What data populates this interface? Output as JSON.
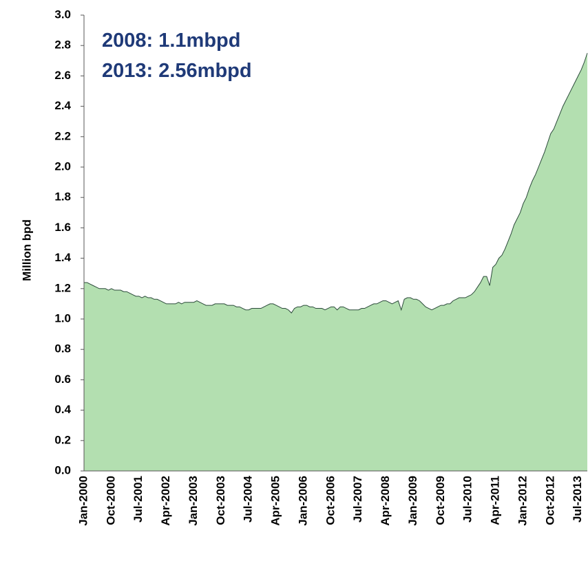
{
  "chart_data": {
    "type": "area",
    "annotations": [
      "2008: 1.1mbpd",
      "2013: 2.56mbpd"
    ],
    "y_label": "Million bpd",
    "color": "#b3dfb0",
    "line_color": "#2b4a3a",
    "categories": [
      "Jan-2000",
      null,
      null,
      null,
      null,
      null,
      null,
      null,
      null,
      "Oct-2000",
      null,
      null,
      null,
      null,
      null,
      null,
      null,
      null,
      "Jul-2001",
      null,
      null,
      null,
      null,
      null,
      null,
      null,
      null,
      "Apr-2002",
      null,
      null,
      null,
      null,
      null,
      null,
      null,
      null,
      "Jan-2003",
      null,
      null,
      null,
      null,
      null,
      null,
      null,
      null,
      "Oct-2003",
      null,
      null,
      null,
      null,
      null,
      null,
      null,
      null,
      "Jul-2004",
      null,
      null,
      null,
      null,
      null,
      null,
      null,
      null,
      "Apr-2005",
      null,
      null,
      null,
      null,
      null,
      null,
      null,
      null,
      "Jan-2006",
      null,
      null,
      null,
      null,
      null,
      null,
      null,
      null,
      "Oct-2006",
      null,
      null,
      null,
      null,
      null,
      null,
      null,
      null,
      "Jul-2007",
      null,
      null,
      null,
      null,
      null,
      null,
      null,
      null,
      "Apr-2008",
      null,
      null,
      null,
      null,
      null,
      null,
      null,
      null,
      "Jan-2009",
      null,
      null,
      null,
      null,
      null,
      null,
      null,
      null,
      "Oct-2009",
      null,
      null,
      null,
      null,
      null,
      null,
      null,
      null,
      "Jul-2010",
      null,
      null,
      null,
      null,
      null,
      null,
      null,
      null,
      "Apr-2011",
      null,
      null,
      null,
      null,
      null,
      null,
      null,
      null,
      "Jan-2012",
      null,
      null,
      null,
      null,
      null,
      null,
      null,
      null,
      "Oct-2012",
      null,
      null,
      null,
      null,
      null,
      null,
      null,
      null,
      "Jul-2013",
      null,
      null,
      null
    ],
    "values": [
      1.24,
      1.24,
      1.23,
      1.22,
      1.21,
      1.2,
      1.2,
      1.2,
      1.19,
      1.2,
      1.19,
      1.19,
      1.19,
      1.18,
      1.18,
      1.17,
      1.16,
      1.15,
      1.15,
      1.14,
      1.15,
      1.14,
      1.14,
      1.13,
      1.13,
      1.12,
      1.11,
      1.1,
      1.1,
      1.1,
      1.1,
      1.11,
      1.1,
      1.11,
      1.11,
      1.11,
      1.11,
      1.12,
      1.11,
      1.1,
      1.09,
      1.09,
      1.09,
      1.1,
      1.1,
      1.1,
      1.1,
      1.09,
      1.09,
      1.09,
      1.08,
      1.08,
      1.07,
      1.06,
      1.06,
      1.07,
      1.07,
      1.07,
      1.07,
      1.08,
      1.09,
      1.1,
      1.1,
      1.09,
      1.08,
      1.07,
      1.07,
      1.06,
      1.04,
      1.07,
      1.08,
      1.08,
      1.09,
      1.09,
      1.08,
      1.08,
      1.07,
      1.07,
      1.07,
      1.06,
      1.07,
      1.08,
      1.08,
      1.06,
      1.08,
      1.08,
      1.07,
      1.06,
      1.06,
      1.06,
      1.06,
      1.07,
      1.07,
      1.08,
      1.09,
      1.1,
      1.1,
      1.11,
      1.12,
      1.12,
      1.11,
      1.1,
      1.11,
      1.12,
      1.06,
      1.13,
      1.14,
      1.14,
      1.13,
      1.13,
      1.12,
      1.1,
      1.08,
      1.07,
      1.06,
      1.07,
      1.08,
      1.09,
      1.09,
      1.1,
      1.1,
      1.12,
      1.13,
      1.14,
      1.14,
      1.14,
      1.15,
      1.16,
      1.18,
      1.21,
      1.24,
      1.28,
      1.28,
      1.22,
      1.34,
      1.36,
      1.4,
      1.42,
      1.46,
      1.51,
      1.56,
      1.62,
      1.66,
      1.7,
      1.76,
      1.8,
      1.86,
      1.91,
      1.95,
      2.0,
      2.05,
      2.1,
      2.16,
      2.22,
      2.25,
      2.3,
      2.35,
      2.4,
      2.44,
      2.48,
      2.52,
      2.56,
      2.6,
      2.64,
      2.69,
      2.75
    ],
    "ylim": [
      0,
      3
    ],
    "yticks": [
      {
        "value": 0,
        "label": "0.0"
      },
      0.2,
      0.4,
      0.6,
      0.8,
      {
        "value": 1,
        "label": "1.0"
      },
      1.2,
      1.4,
      1.6,
      1.8,
      {
        "value": 2,
        "label": "2.0"
      },
      2.2,
      2.4,
      2.6,
      2.8,
      {
        "value": 3,
        "label": "3.0"
      }
    ]
  }
}
